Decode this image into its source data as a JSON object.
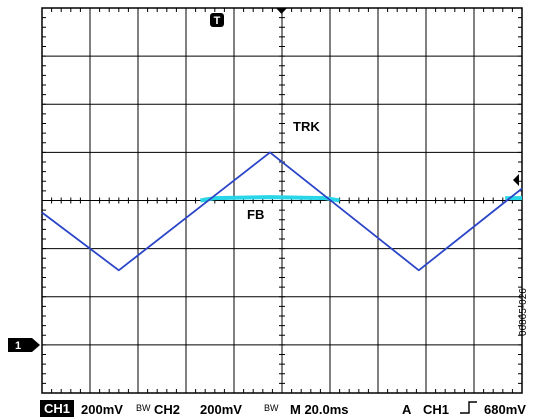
{
  "chart_data": {
    "type": "line",
    "title": "",
    "xlabel": "",
    "ylabel": "",
    "grid": true,
    "xlim": [
      0,
      10
    ],
    "ylim": [
      -4,
      4
    ],
    "x_units": "div",
    "y_units": "div",
    "series": [
      {
        "name": "TRK",
        "color": "#2b45c8",
        "x": [
          0.0,
          1.6,
          4.75,
          7.85,
          10.0
        ],
        "y": [
          -0.25,
          -1.45,
          1.0,
          -1.45,
          0.25
        ]
      },
      {
        "name": "FB",
        "color": "#29d6e8",
        "x": [
          3.3,
          3.6,
          4.75,
          5.9,
          6.2
        ],
        "y": [
          0.0,
          0.05,
          0.07,
          0.05,
          0.0
        ],
        "x_extra": [
          10.0,
          10.0
        ],
        "y_extra": [
          0.05,
          0.05
        ]
      }
    ],
    "annotations": {
      "trk": "TRK",
      "fb": "FB",
      "trigger_top": "T",
      "ch1_marker": "1"
    }
  },
  "status": {
    "ch1_tag": "CH1",
    "ch1_scale": "200mV",
    "bw1": "BW",
    "ch2": "CH2",
    "ch2_scale": "200mV",
    "bw2": "BW",
    "time": "M 20.0ms",
    "trig": "A",
    "trig_ch": "CH1",
    "trig_level": "680mV"
  },
  "figure_id": "06865-026"
}
